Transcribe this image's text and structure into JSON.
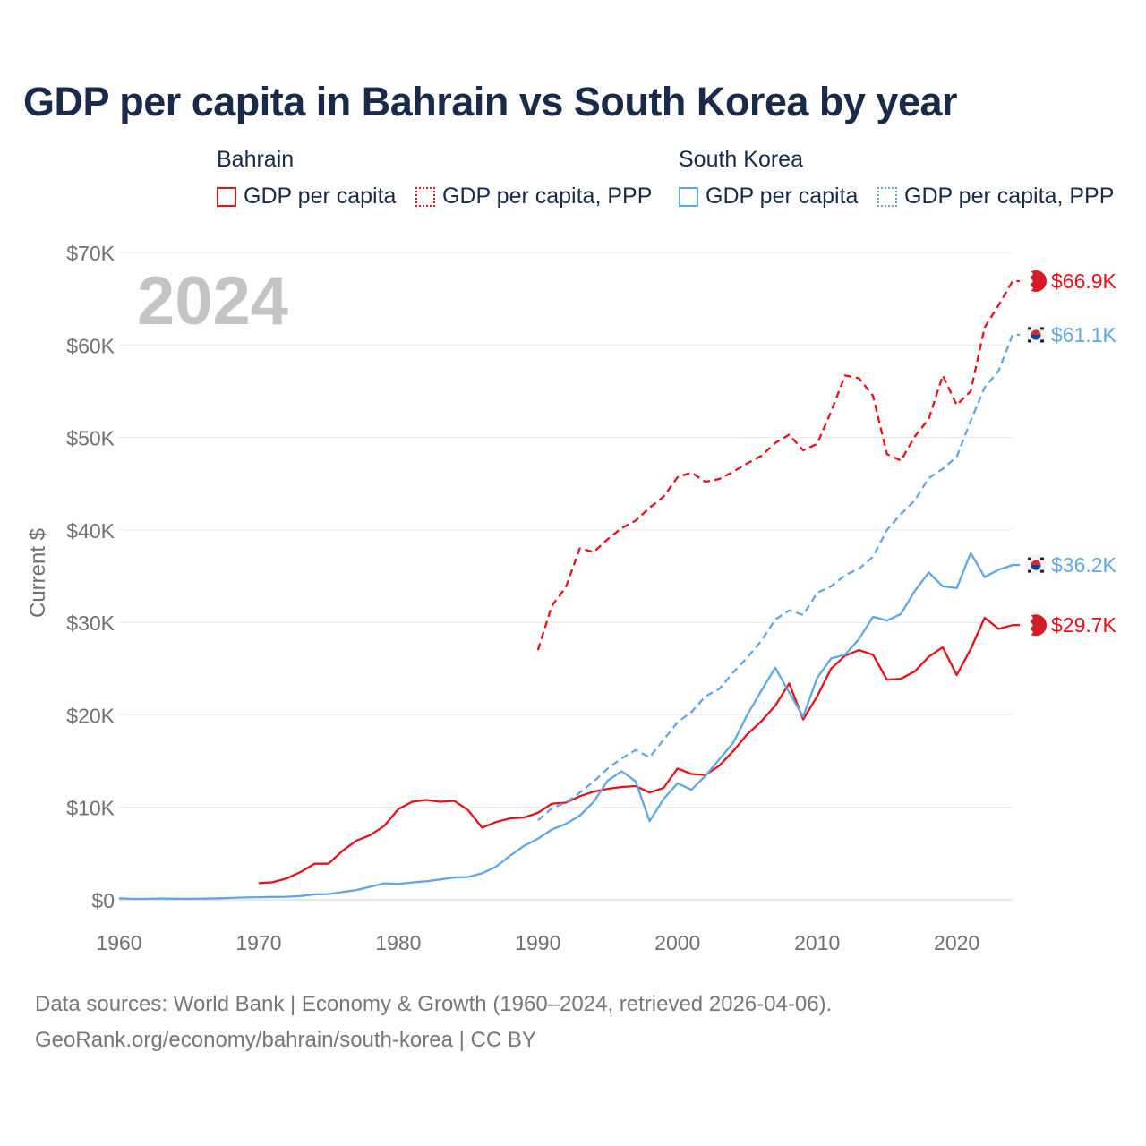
{
  "title": "GDP per capita in Bahrain vs South Korea by year",
  "legend": {
    "bahrain": {
      "title": "Bahrain",
      "gdp": "GDP per capita",
      "ppp": "GDP per capita, PPP",
      "color": "#e8101a"
    },
    "korea": {
      "title": "South Korea",
      "gdp": "GDP per capita",
      "ppp": "GDP per capita, PPP",
      "color": "#60a7e6"
    }
  },
  "source": {
    "line1": "Data sources: World Bank | Economy & Growth (1960–2024, retrieved 2026-04-06).",
    "line2": "GeoRank.org/economy/bahrain/south-korea | CC BY"
  },
  "chart_data": {
    "type": "line",
    "title": "GDP per capita in Bahrain vs South Korea by year",
    "year_label": "2024",
    "ylabel": "Current $",
    "xlabel": "",
    "xlim": [
      1960,
      2024
    ],
    "ylim": [
      0,
      70000
    ],
    "x_ticks": [
      "1960",
      "1970",
      "1980",
      "1990",
      "2000",
      "2010",
      "2020"
    ],
    "x_tick_values": [
      1960,
      1970,
      1980,
      1990,
      2000,
      2010,
      2020
    ],
    "y_ticks": [
      "$0",
      "$10K",
      "$20K",
      "$30K",
      "$40K",
      "$50K",
      "$60K",
      "$70K"
    ],
    "y_tick_values": [
      0,
      10000,
      20000,
      30000,
      40000,
      50000,
      60000,
      70000
    ],
    "grid": true,
    "series": [
      {
        "name": "Bahrain GDP per capita",
        "color": "#e8101a",
        "dashed": false,
        "end_label": "$29.7K",
        "flag": "bahrain-flag",
        "x_start": 1970,
        "values": [
          1800,
          1900,
          2300,
          3000,
          3900,
          3900,
          5300,
          6400,
          7000,
          8000,
          9800,
          10600,
          10800,
          10600,
          10700,
          9700,
          7800,
          8400,
          8800,
          8900,
          9400,
          10400,
          10500,
          11200,
          11700,
          12000,
          12200,
          12300,
          11600,
          12100,
          14200,
          13600,
          13500,
          14500,
          16100,
          17900,
          19300,
          21000,
          23400,
          19500,
          22000,
          25000,
          26400,
          27000,
          26500,
          23800,
          23900,
          24700,
          26300,
          27300,
          24300,
          27100,
          30500,
          29300,
          29700
        ]
      },
      {
        "name": "Bahrain GDP per capita, PPP",
        "color": "#e8101a",
        "dashed": true,
        "end_label": "$66.9K",
        "flag": "bahrain-flag",
        "x_start": 1990,
        "values": [
          27000,
          31800,
          33800,
          38000,
          37600,
          39000,
          40200,
          41000,
          42400,
          43600,
          45700,
          46200,
          45200,
          45500,
          46300,
          47200,
          48000,
          49400,
          50300,
          48600,
          49300,
          52800,
          56700,
          56400,
          54500,
          48200,
          47500,
          50100,
          52000,
          56700,
          53500,
          55000,
          61900,
          64300,
          66900
        ]
      },
      {
        "name": "South Korea GDP per capita",
        "color": "#60a7e6",
        "dashed": false,
        "end_label": "$36.2K",
        "flag": "korea-flag",
        "x_start": 1960,
        "values": [
          160,
          95,
          105,
          145,
          120,
          110,
          130,
          160,
          200,
          250,
          280,
          310,
          330,
          410,
          590,
          620,
          840,
          1060,
          1410,
          1780,
          1710,
          1880,
          2000,
          2200,
          2410,
          2470,
          2870,
          3580,
          4750,
          5830,
          6600,
          7600,
          8200,
          9100,
          10600,
          12900,
          13900,
          12800,
          8500,
          10900,
          12600,
          11900,
          13400,
          15200,
          17000,
          20000,
          22600,
          25100,
          22400,
          19800,
          24000,
          26100,
          26500,
          28200,
          30600,
          30200,
          30900,
          33400,
          35400,
          33900,
          33700,
          37500,
          34900,
          35700,
          36200
        ]
      },
      {
        "name": "South Korea GDP per capita, PPP",
        "color": "#60a7e6",
        "dashed": true,
        "end_label": "$61.1K",
        "flag": "korea-flag",
        "x_start": 1990,
        "values": [
          8600,
          9900,
          10500,
          11600,
          12800,
          14200,
          15300,
          16200,
          15400,
          17300,
          19200,
          20300,
          22000,
          22800,
          24600,
          26200,
          28000,
          30300,
          31300,
          30800,
          33200,
          33900,
          35100,
          35800,
          37100,
          40000,
          41700,
          43200,
          45600,
          46600,
          47900,
          51800,
          55400,
          57200,
          61100
        ]
      }
    ]
  }
}
